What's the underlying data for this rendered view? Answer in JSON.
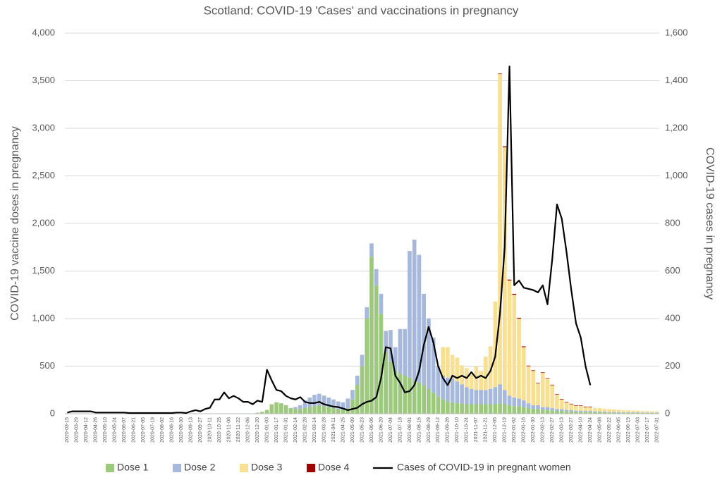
{
  "chart_data": {
    "type": "bar",
    "title": "Scotland: COVID-19 'Cases' and vaccinations in pregnancy",
    "y_label": "COVID-19 vaccine doses in pregnancy",
    "y2_label": "COVID-19 cases in pregnancy",
    "categories": [
      "2020-03-15",
      null,
      "2020-03-29",
      null,
      "2020-04-12",
      null,
      "2020-04-26",
      null,
      "2020-05-10",
      null,
      "2020-05-24",
      null,
      "2020-06-07",
      null,
      "2020-06-21",
      null,
      "2020-07-05",
      null,
      "2020-07-19",
      null,
      "2020-08-02",
      null,
      "2020-08-16",
      null,
      "2020-08-30",
      null,
      "2020-09-13",
      null,
      "2020-09-27",
      null,
      "2020-10-11",
      null,
      "2020-10-25",
      null,
      "2020-11-08",
      null,
      "2020-11-22",
      null,
      "2020-12-06",
      null,
      "2020-12-20",
      null,
      "2021-01-03",
      null,
      "2021-01-17",
      null,
      "2021-01-31",
      null,
      "2021-02-14",
      null,
      "2021-02-28",
      null,
      "2021-03-14",
      null,
      "2021-03-28",
      null,
      "2021-04-11",
      null,
      "2021-04-25",
      null,
      "2021-05-09",
      null,
      "2021-05-23",
      null,
      "2021-06-06",
      null,
      "2021-06-20",
      null,
      "2021-07-04",
      null,
      "2021-07-18",
      null,
      "2021-08-01",
      null,
      "2021-08-15",
      null,
      "2021-08-29",
      null,
      "2021-09-12",
      null,
      "2021-09-26",
      null,
      "2021-10-10",
      null,
      "2021-10-24",
      null,
      "2021-11-07",
      null,
      "2021-11-21",
      null,
      "2021-12-05",
      null,
      "2021-12-19",
      null,
      "2022-01-02",
      null,
      "2022-01-16",
      null,
      "2022-01-30",
      null,
      "2022-02-13",
      null,
      "2022-02-27",
      null,
      "2022-03-13",
      null,
      "2022-03-27",
      null,
      "2022-04-10",
      null,
      "2022-04-24",
      null,
      "2022-05-08",
      null,
      "2022-05-22",
      null,
      "2022-06-05",
      null,
      "2022-06-19",
      null,
      "2022-07-03",
      null,
      "2022-07-17",
      null,
      "2022-07-31"
    ],
    "series": [
      {
        "name": "Dose 1",
        "type": "bar",
        "color": "#9cc97c",
        "values": [
          0,
          0,
          0,
          0,
          0,
          0,
          0,
          0,
          0,
          0,
          0,
          0,
          0,
          0,
          0,
          0,
          0,
          0,
          0,
          0,
          0,
          0,
          0,
          0,
          0,
          0,
          0,
          0,
          0,
          0,
          0,
          0,
          0,
          0,
          0,
          0,
          0,
          0,
          0,
          0,
          10,
          20,
          40,
          100,
          120,
          110,
          90,
          60,
          50,
          50,
          60,
          70,
          80,
          90,
          80,
          70,
          60,
          50,
          40,
          60,
          150,
          300,
          500,
          1000,
          1650,
          1350,
          1050,
          650,
          550,
          450,
          420,
          400,
          380,
          350,
          330,
          300,
          260,
          220,
          180,
          150,
          130,
          120,
          110,
          110,
          100,
          100,
          100,
          100,
          100,
          100,
          100,
          110,
          100,
          90,
          80,
          80,
          70,
          60,
          50,
          50,
          40,
          40,
          35,
          30,
          30,
          25,
          25,
          20,
          20,
          20,
          20,
          15,
          15,
          15,
          12,
          12,
          12,
          10,
          10,
          10,
          10,
          8,
          8,
          8,
          8
        ]
      },
      {
        "name": "Dose 2",
        "type": "bar",
        "color": "#a6b9dc",
        "values": [
          0,
          0,
          0,
          0,
          0,
          0,
          0,
          0,
          0,
          0,
          0,
          0,
          0,
          0,
          0,
          0,
          0,
          0,
          0,
          0,
          0,
          0,
          0,
          0,
          0,
          0,
          0,
          0,
          0,
          0,
          0,
          0,
          0,
          0,
          0,
          0,
          0,
          0,
          0,
          0,
          0,
          0,
          0,
          0,
          0,
          0,
          0,
          0,
          20,
          40,
          80,
          100,
          120,
          120,
          110,
          100,
          90,
          80,
          80,
          100,
          100,
          100,
          120,
          120,
          140,
          170,
          210,
          220,
          330,
          250,
          470,
          490,
          1330,
          1480,
          1340,
          960,
          740,
          580,
          320,
          250,
          250,
          250,
          230,
          200,
          180,
          160,
          150,
          150,
          150,
          160,
          180,
          200,
          150,
          100,
          90,
          80,
          70,
          50,
          40,
          40,
          30,
          30,
          25,
          20,
          20,
          15,
          15,
          12,
          12,
          10,
          10,
          10,
          10,
          8,
          8,
          8,
          6,
          6,
          6,
          5,
          5,
          5,
          5,
          5,
          5
        ]
      },
      {
        "name": "Dose 3",
        "type": "bar",
        "color": "#f7e094",
        "values": [
          0,
          0,
          0,
          0,
          0,
          0,
          0,
          0,
          0,
          0,
          0,
          0,
          0,
          0,
          0,
          0,
          0,
          0,
          0,
          0,
          0,
          0,
          0,
          0,
          0,
          0,
          0,
          0,
          0,
          0,
          0,
          0,
          0,
          0,
          0,
          0,
          0,
          0,
          0,
          0,
          0,
          0,
          0,
          0,
          0,
          0,
          0,
          0,
          0,
          0,
          0,
          0,
          0,
          0,
          0,
          0,
          0,
          0,
          0,
          0,
          0,
          0,
          0,
          0,
          0,
          0,
          0,
          0,
          0,
          0,
          0,
          0,
          0,
          0,
          0,
          0,
          0,
          0,
          0,
          300,
          320,
          250,
          250,
          200,
          200,
          150,
          250,
          200,
          350,
          450,
          900,
          3260,
          2550,
          1210,
          1080,
          840,
          560,
          390,
          360,
          230,
          360,
          300,
          240,
          150,
          100,
          80,
          60,
          50,
          50,
          40,
          40,
          35,
          35,
          30,
          30,
          25,
          25,
          20,
          20,
          18,
          18,
          15,
          15,
          12,
          12
        ]
      },
      {
        "name": "Dose 4",
        "type": "bar",
        "color": "#a00000",
        "values": [
          0,
          0,
          0,
          0,
          0,
          0,
          0,
          0,
          0,
          0,
          0,
          0,
          0,
          0,
          0,
          0,
          0,
          0,
          0,
          0,
          0,
          0,
          0,
          0,
          0,
          0,
          0,
          0,
          0,
          0,
          0,
          0,
          0,
          0,
          0,
          0,
          0,
          0,
          0,
          0,
          0,
          0,
          0,
          0,
          0,
          0,
          0,
          0,
          0,
          0,
          0,
          0,
          0,
          0,
          0,
          0,
          0,
          0,
          0,
          0,
          0,
          0,
          0,
          0,
          0,
          0,
          0,
          0,
          0,
          0,
          0,
          0,
          0,
          0,
          0,
          0,
          0,
          0,
          0,
          0,
          0,
          0,
          0,
          0,
          0,
          0,
          0,
          0,
          0,
          0,
          0,
          5,
          10,
          10,
          10,
          8,
          8,
          6,
          6,
          5,
          5,
          5,
          5,
          5,
          5,
          5,
          5,
          5,
          5,
          5,
          5,
          0,
          0,
          0,
          0,
          0,
          0,
          0,
          0,
          0,
          0,
          0,
          0,
          0,
          0
        ]
      },
      {
        "name": "Cases of COVID-19 in pregnant women",
        "type": "line",
        "axis": "y2",
        "color": "#000000",
        "values": [
          5,
          10,
          10,
          10,
          10,
          10,
          5,
          5,
          5,
          5,
          5,
          5,
          5,
          3,
          3,
          3,
          3,
          3,
          3,
          3,
          3,
          3,
          3,
          5,
          5,
          3,
          10,
          15,
          10,
          20,
          25,
          60,
          60,
          90,
          65,
          75,
          65,
          50,
          50,
          40,
          55,
          50,
          185,
          140,
          100,
          95,
          75,
          65,
          60,
          70,
          50,
          45,
          45,
          50,
          40,
          35,
          30,
          28,
          22,
          15,
          20,
          25,
          40,
          50,
          55,
          70,
          150,
          280,
          275,
          160,
          130,
          90,
          95,
          120,
          180,
          290,
          365,
          300,
          200,
          150,
          120,
          160,
          150,
          160,
          150,
          175,
          150,
          160,
          150,
          180,
          240,
          420,
          700,
          1460,
          540,
          560,
          530,
          525,
          520,
          510,
          540,
          460,
          650,
          880,
          820,
          680,
          520,
          380,
          320,
          200,
          120,
          null,
          null,
          null,
          null,
          null,
          null,
          null,
          null,
          null,
          null,
          null,
          null,
          null,
          null
        ]
      }
    ],
    "ylim": [
      0,
      4000
    ],
    "yticks": [
      0,
      500,
      {
        "value": 1000,
        "label": "1,000"
      },
      {
        "value": 1500,
        "label": "1,500"
      },
      {
        "value": 2000,
        "label": "2,000"
      },
      {
        "value": 2500,
        "label": "2,500"
      },
      {
        "value": 3000,
        "label": "3,000"
      },
      {
        "value": 3500,
        "label": "3,500"
      },
      {
        "value": 4000,
        "label": "4,000"
      }
    ],
    "y2lim": [
      0,
      1600
    ],
    "y2ticks": [
      0,
      200,
      400,
      600,
      800,
      {
        "value": 1000,
        "label": "1,000"
      },
      {
        "value": 1200,
        "label": "1,200"
      },
      {
        "value": 1400,
        "label": "1,400"
      },
      {
        "value": 1600,
        "label": "1,600"
      }
    ],
    "grid": true,
    "legend": "bottom"
  }
}
